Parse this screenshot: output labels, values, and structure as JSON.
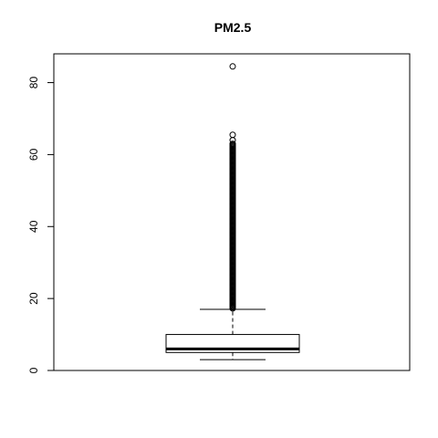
{
  "chart_data": {
    "type": "box",
    "title": "PM2.5",
    "xlabel": "",
    "ylabel": "",
    "ylim": [
      0,
      88
    ],
    "yticks": [
      0,
      20,
      40,
      60,
      80
    ],
    "box": {
      "whisker_low": 3,
      "q1": 5,
      "median": 6,
      "q3": 10,
      "whisker_high": 17,
      "outliers_dense_range": [
        17,
        63
      ],
      "outliers_individual": [
        64.0,
        65.5,
        84.5
      ]
    },
    "colors": {
      "line": "#000000",
      "box_fill": "#ffffff",
      "background": "#ffffff"
    }
  }
}
